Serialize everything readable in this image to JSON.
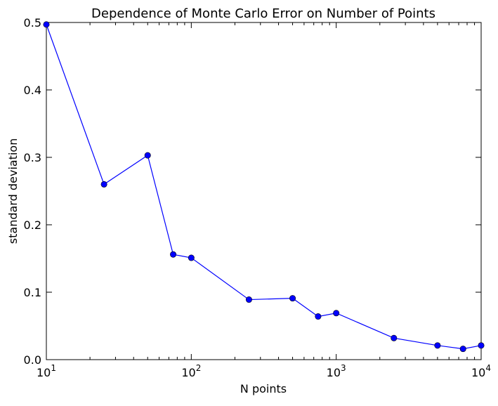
{
  "chart_data": {
    "type": "line",
    "title": "Dependence of Monte Carlo Error on Number of Points",
    "xlabel": "N points",
    "ylabel": "standard deviation",
    "xscale": "log",
    "xlim": [
      10,
      10000
    ],
    "ylim": [
      0,
      0.5
    ],
    "grid": false,
    "legend": "none",
    "x_ticks": [
      {
        "value": 10,
        "base": "10",
        "exp": "1"
      },
      {
        "value": 100,
        "base": "10",
        "exp": "2"
      },
      {
        "value": 1000,
        "base": "10",
        "exp": "3"
      },
      {
        "value": 10000,
        "base": "10",
        "exp": "4"
      }
    ],
    "y_ticks": [
      {
        "value": 0,
        "label": "0.0"
      },
      {
        "value": 0.1,
        "label": "0.1"
      },
      {
        "value": 0.2,
        "label": "0.2"
      },
      {
        "value": 0.3,
        "label": "0.3"
      },
      {
        "value": 0.4,
        "label": "0.4"
      },
      {
        "value": 0.5,
        "label": "0.5"
      }
    ],
    "series": [
      {
        "color": "#0000ff",
        "marker": "circle",
        "x": [
          10,
          25,
          50,
          75,
          100,
          250,
          500,
          750,
          1000,
          2500,
          5000,
          7500,
          10000
        ],
        "y": [
          0.497,
          0.26,
          0.303,
          0.156,
          0.151,
          0.089,
          0.091,
          0.064,
          0.069,
          0.032,
          0.021,
          0.016,
          0.021
        ]
      }
    ]
  }
}
